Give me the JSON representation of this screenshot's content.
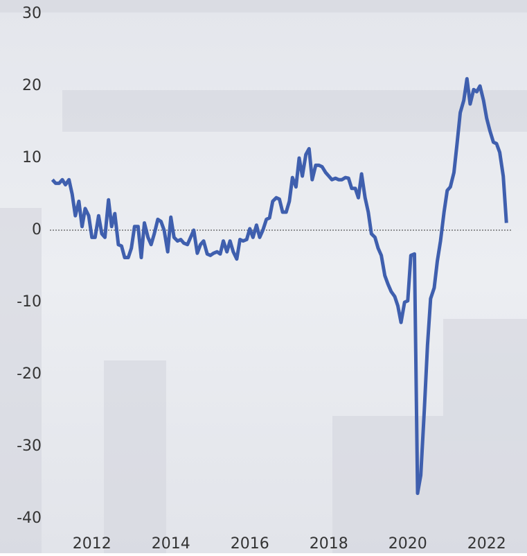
{
  "chart_data": {
    "type": "line",
    "x": [
      2011.0,
      2011.08,
      2011.17,
      2011.25,
      2011.33,
      2011.42,
      2011.5,
      2011.58,
      2011.67,
      2011.75,
      2011.83,
      2011.92,
      2012.0,
      2012.08,
      2012.17,
      2012.25,
      2012.33,
      2012.42,
      2012.5,
      2012.58,
      2012.67,
      2012.75,
      2012.83,
      2012.92,
      2013.0,
      2013.08,
      2013.17,
      2013.25,
      2013.33,
      2013.42,
      2013.5,
      2013.58,
      2013.67,
      2013.75,
      2013.83,
      2013.92,
      2014.0,
      2014.08,
      2014.17,
      2014.25,
      2014.33,
      2014.42,
      2014.5,
      2014.58,
      2014.67,
      2014.75,
      2014.83,
      2014.92,
      2015.0,
      2015.08,
      2015.17,
      2015.25,
      2015.33,
      2015.42,
      2015.5,
      2015.58,
      2015.67,
      2015.75,
      2015.83,
      2015.92,
      2016.0,
      2016.08,
      2016.17,
      2016.25,
      2016.33,
      2016.42,
      2016.5,
      2016.58,
      2016.67,
      2016.75,
      2016.83,
      2016.92,
      2017.0,
      2017.08,
      2017.17,
      2017.25,
      2017.33,
      2017.42,
      2017.5,
      2017.58,
      2017.67,
      2017.75,
      2017.83,
      2017.92,
      2018.0,
      2018.08,
      2018.17,
      2018.25,
      2018.33,
      2018.42,
      2018.5,
      2018.58,
      2018.67,
      2018.75,
      2018.83,
      2018.92,
      2019.0,
      2019.08,
      2019.17,
      2019.25,
      2019.33,
      2019.42,
      2019.5,
      2019.58,
      2019.67,
      2019.75,
      2019.83,
      2019.92,
      2020.0,
      2020.08,
      2020.17,
      2020.25,
      2020.33,
      2020.42,
      2020.5,
      2020.58,
      2020.67,
      2020.75,
      2020.83,
      2020.92,
      2021.0,
      2021.08,
      2021.17,
      2021.25,
      2021.33,
      2021.42,
      2021.5,
      2021.58,
      2021.67,
      2021.75,
      2021.83,
      2021.92,
      2022.0,
      2022.08,
      2022.17,
      2022.25,
      2022.33,
      2022.42,
      2022.5
    ],
    "series": [
      {
        "color": "#3f5fae",
        "values": [
          7,
          6.5,
          6.5,
          7,
          6.3,
          7,
          5,
          2,
          4,
          0.5,
          3,
          2,
          -1,
          -1,
          2,
          -0.5,
          -1,
          4.2,
          0.5,
          2.3,
          -2,
          -2.2,
          -3.8,
          -3.8,
          -2.5,
          0.5,
          0.5,
          -3.8,
          1,
          -1,
          -2,
          -0.5,
          1.5,
          1.2,
          0,
          -3,
          1.8,
          -1,
          -1.5,
          -1.3,
          -1.8,
          -2,
          -1,
          0,
          -3.2,
          -2,
          -1.5,
          -3.3,
          -3.5,
          -3.2,
          -3,
          -3.3,
          -1.5,
          -3,
          -1.5,
          -3,
          -4,
          -1.3,
          -1.5,
          -1.3,
          0.2,
          -1,
          0.7,
          -1,
          0,
          1.5,
          1.7,
          4,
          4.5,
          4.3,
          2.5,
          2.5,
          4,
          7.3,
          6,
          10,
          7.5,
          10.5,
          11.3,
          7,
          9,
          9,
          8.8,
          8,
          7.5,
          7,
          7.2,
          7,
          7,
          7.3,
          7.2,
          5.8,
          5.8,
          4.5,
          7.8,
          4.5,
          2.5,
          -0.5,
          -1,
          -2.5,
          -3.5,
          -6.3,
          -7.5,
          -8.5,
          -9.2,
          -10.5,
          -12.8,
          -10,
          -9.8,
          -3.5,
          -3.3,
          -36.5,
          -34,
          -25,
          -16,
          -9.5,
          -8,
          -4.3,
          -1.5,
          2.5,
          5.5,
          6,
          8,
          12,
          16.3,
          18,
          21,
          17.5,
          19.5,
          19.2,
          20,
          18,
          15.5,
          13.8,
          12.2,
          12,
          10.8,
          7.5,
          1
        ]
      }
    ],
    "xlim": [
      2010.9,
      2022.6
    ],
    "xticks": [
      2012,
      2014,
      2016,
      2018,
      2020,
      2022
    ],
    "ylim": [
      -40,
      30
    ],
    "yticks": [
      -40,
      -30,
      -20,
      -10,
      0,
      10,
      20,
      30
    ]
  }
}
